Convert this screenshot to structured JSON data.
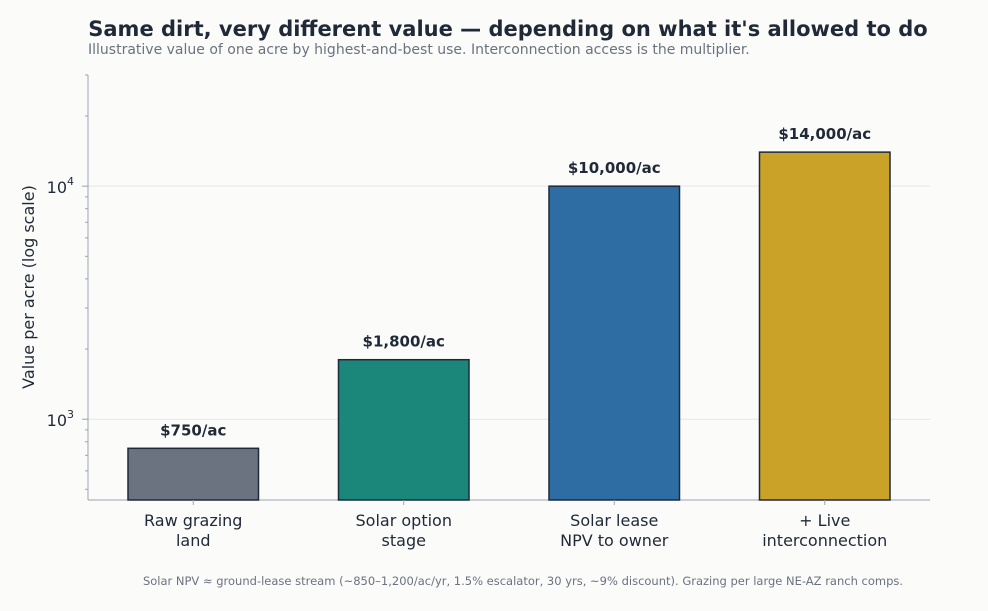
{
  "chart_data": {
    "type": "bar",
    "title": "Same dirt, very different value — depending on what it's allowed to do",
    "subtitle": "Illustrative value of one acre by highest-and-best use. Interconnection access is the multiplier.",
    "ylabel": "Value per acre (log scale)",
    "xlabel": "",
    "yscale": "log",
    "ylim": [
      450,
      30000
    ],
    "y_major_ticks": [
      {
        "value": 1000,
        "base": "10",
        "exp": "3"
      },
      {
        "value": 10000,
        "base": "10",
        "exp": "4"
      }
    ],
    "grid": true,
    "categories": [
      [
        "Raw grazing",
        "land"
      ],
      [
        "Solar option",
        "stage"
      ],
      [
        "Solar lease",
        "NPV to owner"
      ],
      [
        "+ Live",
        "interconnection"
      ]
    ],
    "values": [
      750,
      1800,
      10000,
      14000
    ],
    "data_labels": [
      "$750/ac",
      "$1,800/ac",
      "$10,000/ac",
      "$14,000/ac"
    ],
    "colors": [
      "#6b7280",
      "#1b877a",
      "#2e6ca4",
      "#c9a227"
    ],
    "footnote": "Solar NPV ≈ ground-lease stream (~850–1,200/ac/yr, 1.5% escalator, 30 yrs, ~9% discount). Grazing per large NE-AZ ranch comps."
  }
}
